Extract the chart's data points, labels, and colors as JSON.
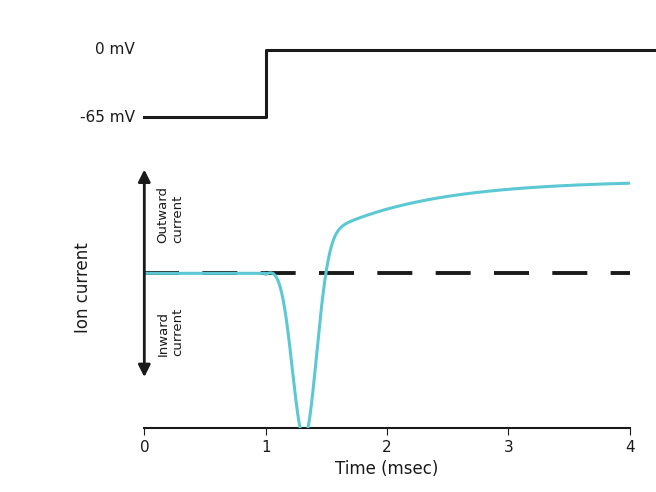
{
  "xlabel": "Time (msec)",
  "ylabel": "Ion current",
  "xlim": [
    0,
    4
  ],
  "background_color": "#ffffff",
  "cyan_color": "#5bc8d4",
  "black_color": "#1a1a1a",
  "dashed_color": "#1a1a1a",
  "voltage_step_t": 1.0,
  "voltage_low": -65,
  "voltage_high": 0,
  "label_0mv": "0 mV",
  "label_neg65mv": "-65 mV",
  "outward_label": "Outward\ncurrent",
  "inward_label": "Inward\ncurrent",
  "ion_label": "Ion current",
  "time_label": "Time (msec)"
}
